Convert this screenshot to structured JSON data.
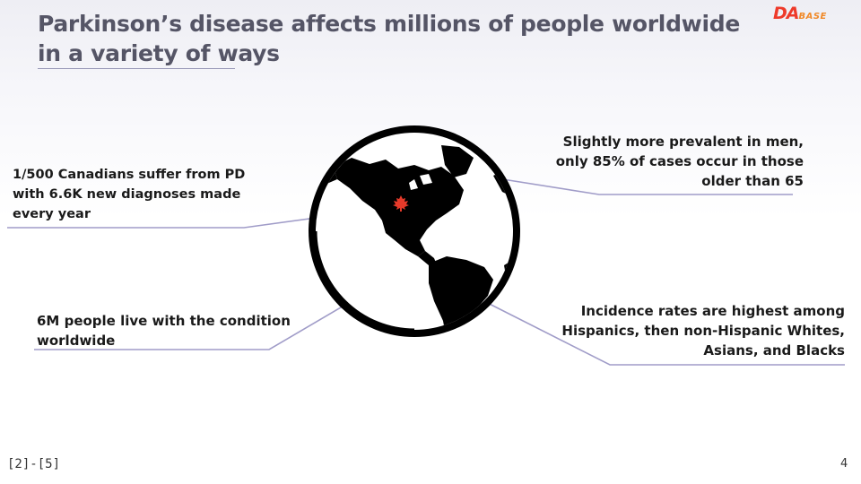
{
  "slide": {
    "title": "Parkinson’s disease affects millions of people worldwide in a variety of ways",
    "page_number": "4",
    "citation": "[2]-[5]"
  },
  "logo": {
    "text_big": "DA",
    "text_small": "BASE",
    "colors": {
      "primary": "#ee3a2a",
      "secondary": "#f08a2a"
    }
  },
  "globe": {
    "icon": "globe-americas-icon",
    "marker": "maple-leaf-icon",
    "marker_color": "#e63a2a"
  },
  "stats": {
    "canada": "1/500 Canadians suffer from PD with 6.6K new diagnoses made every year",
    "worldwide": "6M people live with the condition worldwide",
    "gender_age": "Slightly more prevalent in men, only 85% of cases occur in those older than 65",
    "ethnicity": "Incidence rates are highest among Hispanics, then non-Hispanic Whites, Asians, and Blacks"
  },
  "colors": {
    "title": "#555566",
    "connector": "#a09cc8",
    "text": "#1a1a1a"
  }
}
